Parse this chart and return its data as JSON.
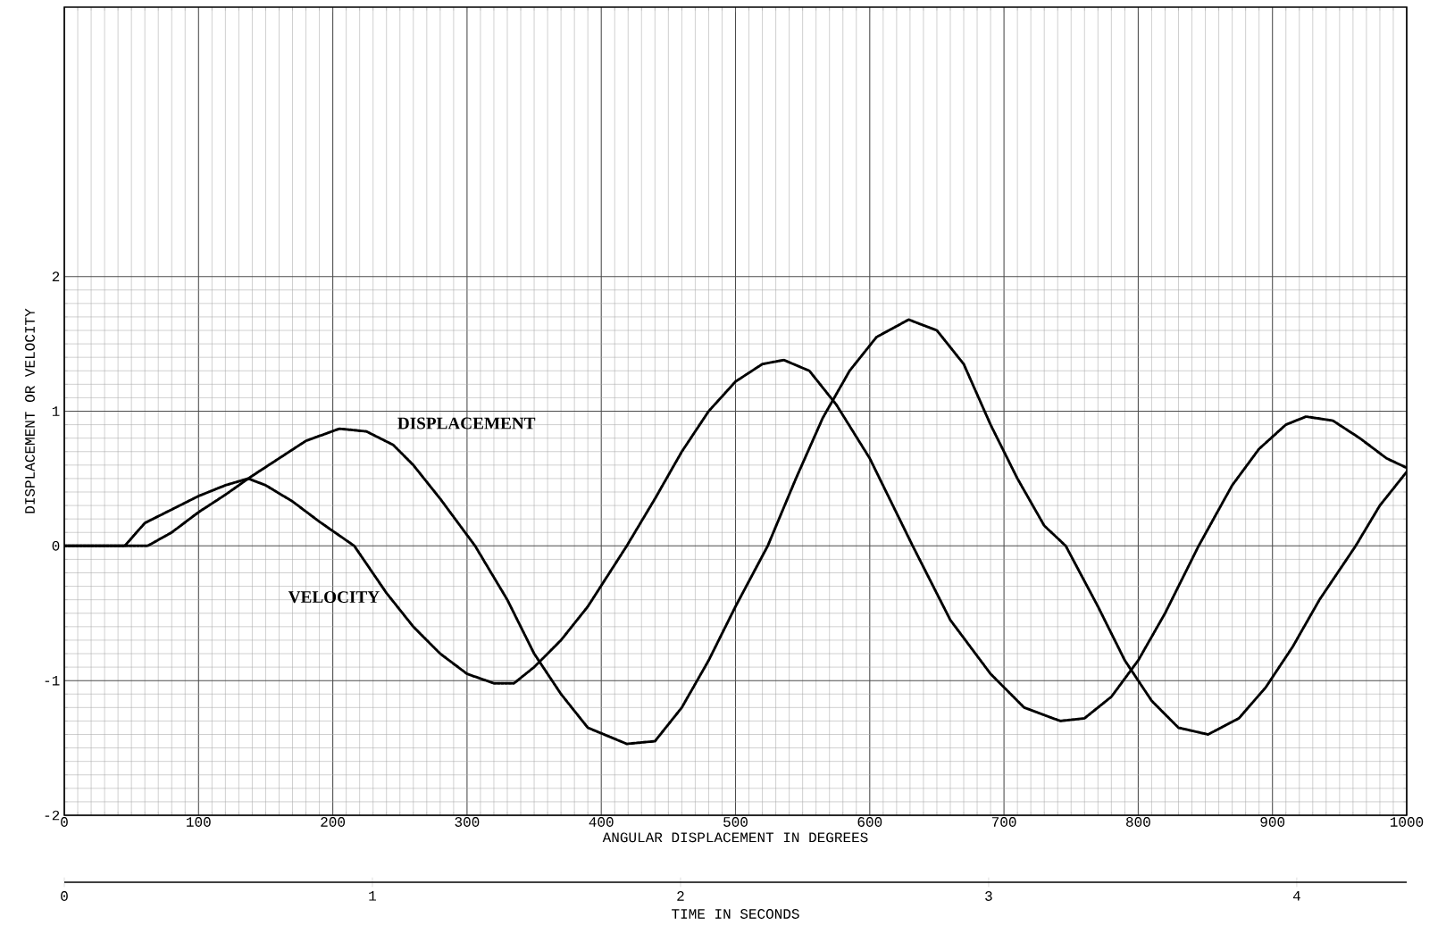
{
  "chart_data": {
    "type": "line",
    "xlabel": "ANGULAR DISPLACEMENT IN DEGREES",
    "ylabel": "DISPLACEMENT OR VELOCITY",
    "x2label": "TIME IN SECONDS",
    "xlim": [
      0,
      1000
    ],
    "xticks": [
      0,
      100,
      200,
      300,
      400,
      500,
      600,
      700,
      800,
      900,
      1000
    ],
    "ylim": [
      -2,
      4
    ],
    "yticks": [
      -2,
      -1,
      0,
      1,
      2
    ],
    "x2lim": [
      0,
      4.357
    ],
    "x2ticks": [
      0,
      1,
      2,
      3,
      4
    ],
    "grid": true,
    "line_style": "dotted",
    "series": [
      {
        "name": "DISPLACEMENT",
        "color": "#000000",
        "x": [
          0,
          30,
          62,
          80,
          100,
          120,
          140,
          160,
          180,
          205,
          225,
          245,
          260,
          280,
          306,
          330,
          350,
          370,
          390,
          419,
          440,
          460,
          480,
          500,
          524,
          545,
          565,
          585,
          605,
          629,
          650,
          670,
          690,
          710,
          730,
          746,
          770,
          790,
          810,
          830,
          852,
          875,
          895,
          915,
          935,
          962,
          980,
          1000
        ],
        "values": [
          0,
          0,
          0,
          0.1,
          0.25,
          0.38,
          0.52,
          0.65,
          0.78,
          0.87,
          0.85,
          0.75,
          0.6,
          0.35,
          0,
          -0.4,
          -0.8,
          -1.1,
          -1.35,
          -1.47,
          -1.45,
          -1.2,
          -0.85,
          -0.45,
          0,
          0.5,
          0.95,
          1.3,
          1.55,
          1.68,
          1.6,
          1.35,
          0.9,
          0.5,
          0.15,
          0,
          -0.45,
          -0.85,
          -1.15,
          -1.35,
          -1.4,
          -1.28,
          -1.05,
          -0.75,
          -0.4,
          0,
          0.3,
          0.55
        ]
      },
      {
        "name": "VELOCITY",
        "color": "#000000",
        "x": [
          0,
          20,
          45,
          60,
          80,
          100,
          120,
          137,
          150,
          170,
          190,
          216,
          240,
          260,
          280,
          300,
          320,
          335,
          350,
          370,
          390,
          419,
          440,
          460,
          480,
          500,
          520,
          536,
          555,
          575,
          600,
          632,
          660,
          690,
          715,
          742,
          760,
          780,
          800,
          820,
          845,
          870,
          890,
          910,
          925,
          945,
          965,
          985,
          1000
        ],
        "values": [
          0,
          0,
          0,
          0.17,
          0.27,
          0.37,
          0.45,
          0.5,
          0.45,
          0.33,
          0.18,
          0,
          -0.35,
          -0.6,
          -0.8,
          -0.95,
          -1.02,
          -1.02,
          -0.9,
          -0.7,
          -0.45,
          0,
          0.35,
          0.7,
          1.0,
          1.22,
          1.35,
          1.38,
          1.3,
          1.05,
          0.65,
          0,
          -0.55,
          -0.95,
          -1.2,
          -1.3,
          -1.28,
          -1.12,
          -0.85,
          -0.5,
          0,
          0.45,
          0.72,
          0.9,
          0.96,
          0.93,
          0.8,
          0.65,
          0.58
        ]
      }
    ]
  }
}
